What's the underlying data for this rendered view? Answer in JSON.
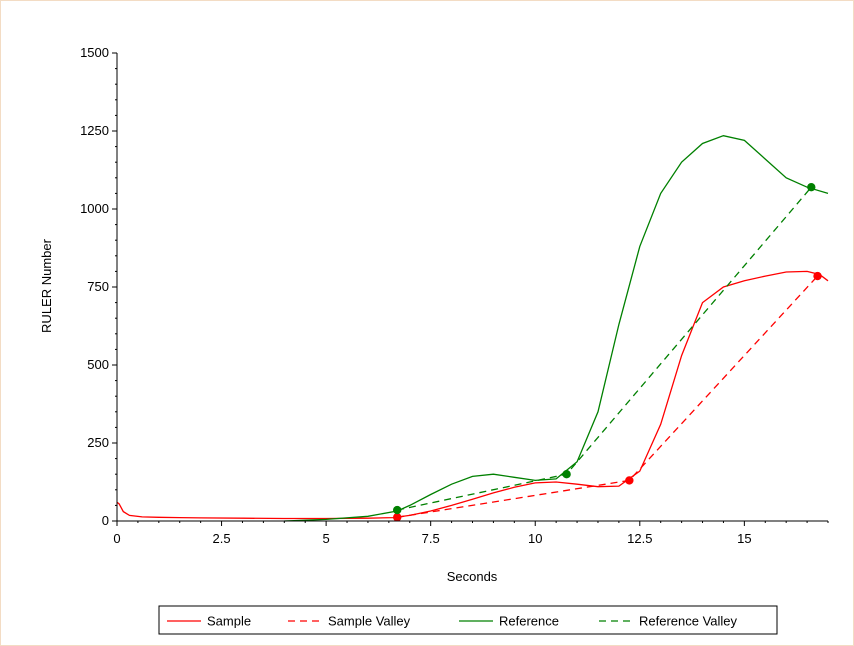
{
  "chart_data": {
    "type": "line",
    "title": "",
    "xlabel": "Seconds",
    "ylabel": "RULER Number",
    "xlim": [
      0,
      17
    ],
    "ylim": [
      0,
      1500
    ],
    "xticks": [
      "0",
      "2.5",
      "5",
      "7.5",
      "10",
      "12.5",
      "15"
    ],
    "xtick_values": [
      0,
      2.5,
      5,
      7.5,
      10,
      12.5,
      15
    ],
    "yticks": [
      "0",
      "250",
      "500",
      "750",
      "1000",
      "1250",
      "1500"
    ],
    "ytick_values": [
      0,
      250,
      500,
      750,
      1000,
      1250,
      1500
    ],
    "grid": false,
    "legend_position": "bottom",
    "series": [
      {
        "name": "Sample",
        "color": "#ff0000",
        "dash": false,
        "x": [
          0,
          0.05,
          0.15,
          0.3,
          0.6,
          1,
          1.5,
          2,
          3,
          4,
          5,
          6,
          6.6,
          7,
          7.5,
          8,
          8.5,
          9,
          9.5,
          10,
          10.5,
          11,
          11.5,
          12,
          12.5,
          13,
          13.5,
          14,
          14.5,
          15,
          15.5,
          16,
          16.5,
          16.8,
          17
        ],
        "y": [
          60,
          55,
          30,
          18,
          13,
          12,
          11,
          10,
          9,
          8,
          8,
          9,
          11,
          18,
          32,
          50,
          70,
          90,
          108,
          122,
          125,
          118,
          110,
          112,
          160,
          310,
          530,
          700,
          750,
          770,
          785,
          798,
          800,
          790,
          770
        ]
      },
      {
        "name": "Sample Valley",
        "color": "#ff0000",
        "dash": true,
        "x": [
          6.7,
          12.25,
          16.75
        ],
        "y": [
          12,
          130,
          785
        ]
      },
      {
        "name": "Reference",
        "color": "#008000",
        "dash": false,
        "x": [
          4,
          5,
          6,
          6.7,
          7,
          7.5,
          8,
          8.5,
          9,
          9.5,
          10,
          10.5,
          11,
          11.5,
          12,
          12.5,
          13,
          13.5,
          14,
          14.5,
          15,
          15.5,
          16,
          16.5,
          17
        ],
        "y": [
          0,
          5,
          15,
          32,
          50,
          85,
          118,
          143,
          150,
          140,
          130,
          135,
          190,
          350,
          630,
          880,
          1050,
          1150,
          1210,
          1235,
          1220,
          1160,
          1100,
          1070,
          1050
        ]
      },
      {
        "name": "Reference Valley",
        "color": "#008000",
        "dash": true,
        "x": [
          6.7,
          10.75,
          16.6
        ],
        "y": [
          35,
          150,
          1070
        ]
      }
    ],
    "markers": [
      {
        "x": 6.7,
        "y": 12,
        "color": "#ff0000"
      },
      {
        "x": 12.25,
        "y": 130,
        "color": "#ff0000"
      },
      {
        "x": 16.75,
        "y": 785,
        "color": "#ff0000"
      },
      {
        "x": 6.7,
        "y": 35,
        "color": "#008000"
      },
      {
        "x": 10.75,
        "y": 150,
        "color": "#008000"
      },
      {
        "x": 16.6,
        "y": 1070,
        "color": "#008000"
      }
    ]
  }
}
